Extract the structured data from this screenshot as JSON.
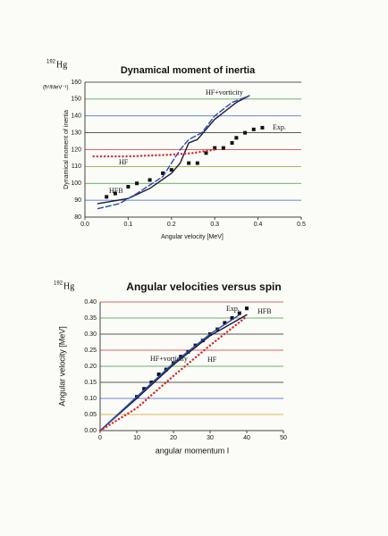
{
  "chart_data": [
    {
      "type": "line",
      "nucleus_mass": "192",
      "nucleus_symbol": "Hg",
      "title": "Dynamical moment of inertia",
      "unit_label": "(ħ²/MeV⁻¹)",
      "y_label": "Dynamical moment of inertia",
      "x_label": "Angular velocity [MeV]",
      "xlim": [
        0,
        0.5
      ],
      "xticks": [
        {
          "value": 0,
          "label": "0.0"
        },
        0.1,
        0.2,
        0.3,
        0.4,
        0.5
      ],
      "ylim": [
        80,
        160
      ],
      "yticks": [
        80,
        90,
        100,
        110,
        120,
        130,
        140,
        150,
        160
      ],
      "grid": true,
      "grid_colors": [
        "#7a4fa0",
        "#3a5fcd",
        "#3c9a3c",
        "#9a9a2a",
        "#d03030",
        "#222222",
        "#3a5fcd",
        "#3c9a3c",
        "#222222"
      ],
      "series": [
        {
          "name": "Exp.",
          "color": "#111111",
          "style": "square",
          "x": [
            0.05,
            0.07,
            0.1,
            0.12,
            0.15,
            0.18,
            0.2,
            0.24,
            0.26,
            0.28,
            0.3,
            0.32,
            0.34,
            0.35,
            0.37,
            0.39,
            0.41
          ],
          "values": [
            92,
            94,
            98,
            100,
            102,
            106,
            108,
            112,
            112,
            118,
            121,
            121,
            124,
            127,
            130,
            132,
            133
          ]
        },
        {
          "name": "HFB",
          "color": "#1a1a3a",
          "style": "solid",
          "x": [
            0.03,
            0.1,
            0.15,
            0.2,
            0.22,
            0.24,
            0.26,
            0.3,
            0.35,
            0.38
          ],
          "values": [
            88,
            91,
            97,
            106,
            112,
            124,
            126,
            138,
            148,
            152
          ]
        },
        {
          "name": "HF+vorticity",
          "color": "#2b4aa8",
          "style": "dashed",
          "x": [
            0.03,
            0.08,
            0.12,
            0.18,
            0.22,
            0.24,
            0.27,
            0.3,
            0.34,
            0.38
          ],
          "values": [
            85,
            88,
            94,
            104,
            120,
            126,
            130,
            140,
            148,
            152
          ]
        },
        {
          "name": "HF",
          "color": "#d62828",
          "style": "dotted",
          "x": [
            0.02,
            0.1,
            0.2,
            0.25,
            0.3
          ],
          "values": [
            116,
            116,
            117,
            118,
            120
          ]
        }
      ]
    },
    {
      "type": "line",
      "nucleus_mass": "192",
      "nucleus_symbol": "Hg",
      "title": "Angular velocities versus spin",
      "y_label": "Angular velocity [MeV]",
      "x_label": "angular momentum I",
      "xlim": [
        0,
        50
      ],
      "xticks": [
        0,
        10,
        20,
        30,
        40,
        50
      ],
      "ylim": [
        0,
        0.4
      ],
      "yticks": [
        {
          "value": 0,
          "label": "0.00"
        },
        {
          "value": 0.05,
          "label": "0.05"
        },
        {
          "value": 0.1,
          "label": "0.10"
        },
        {
          "value": 0.15,
          "label": "0.15"
        },
        {
          "value": 0.2,
          "label": "0.20"
        },
        {
          "value": 0.25,
          "label": "0.25"
        },
        {
          "value": 0.3,
          "label": "0.30"
        },
        {
          "value": 0.35,
          "label": "0.35"
        },
        {
          "value": 0.4,
          "label": "0.40"
        }
      ],
      "grid": true,
      "grid_colors": [
        "#222222",
        "#d0a020",
        "#3a5fcd",
        "#222222",
        "#3c9a3c",
        "#d03030",
        "#222222",
        "#3c9a3c",
        "#d03030"
      ],
      "series": [
        {
          "name": "Exp.",
          "color": "#111111",
          "style": "square",
          "x": [
            10,
            12,
            14,
            16,
            18,
            20,
            22,
            24,
            26,
            28,
            30,
            32,
            34,
            36,
            38,
            40
          ],
          "values": [
            0.105,
            0.13,
            0.15,
            0.175,
            0.19,
            0.21,
            0.23,
            0.245,
            0.265,
            0.28,
            0.3,
            0.315,
            0.335,
            0.35,
            0.365,
            0.38
          ]
        },
        {
          "name": "HFB",
          "color": "#1a1a3a",
          "style": "solid",
          "x": [
            0,
            10,
            20,
            30,
            40
          ],
          "values": [
            0,
            0.1,
            0.205,
            0.295,
            0.36
          ]
        },
        {
          "name": "HF+vorticity",
          "color": "#2b4aa8",
          "style": "solid",
          "x": [
            0,
            10,
            20,
            30,
            38
          ],
          "values": [
            0,
            0.105,
            0.21,
            0.3,
            0.36
          ]
        },
        {
          "name": "HF",
          "color": "#d62828",
          "style": "dotted",
          "x": [
            0,
            10,
            20,
            30,
            40
          ],
          "values": [
            0,
            0.07,
            0.17,
            0.265,
            0.355
          ]
        }
      ]
    }
  ]
}
